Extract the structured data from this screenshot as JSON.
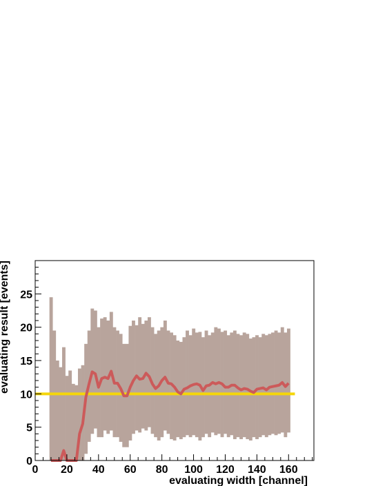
{
  "chart_data": {
    "type": "band_line",
    "x_label": "evaluating width [channel]",
    "y_label": "evaluating result [events]",
    "xlim": [
      0,
      176
    ],
    "ylim": [
      0,
      30
    ],
    "xticks": [
      0,
      20,
      40,
      60,
      80,
      100,
      120,
      140,
      160
    ],
    "yticks": [
      0,
      5,
      10,
      15,
      20,
      25
    ],
    "x": [
      10,
      12,
      14,
      16,
      18,
      20,
      22,
      24,
      26,
      28,
      30,
      32,
      34,
      36,
      38,
      40,
      42,
      44,
      46,
      48,
      50,
      52,
      54,
      56,
      58,
      60,
      62,
      64,
      66,
      68,
      70,
      72,
      74,
      76,
      78,
      80,
      82,
      84,
      86,
      88,
      90,
      92,
      94,
      96,
      98,
      100,
      102,
      104,
      106,
      108,
      110,
      112,
      114,
      116,
      118,
      120,
      122,
      124,
      126,
      128,
      130,
      132,
      134,
      136,
      138,
      140,
      142,
      144,
      146,
      148,
      150,
      152,
      154,
      156,
      158,
      160
    ],
    "band": {
      "color": "#b8a49c",
      "upper": [
        24.5,
        19.5,
        15,
        14,
        17,
        12.7,
        13.5,
        11.5,
        11.3,
        13.8,
        14.3,
        17.5,
        19.5,
        22.8,
        22.5,
        20,
        21.3,
        21.5,
        21,
        22.3,
        20,
        19.5,
        19,
        17.5,
        17.5,
        20.2,
        21,
        20.3,
        21.5,
        20.5,
        21,
        21.5,
        20,
        19,
        19.5,
        20,
        21,
        19.5,
        19.2,
        18.8,
        18,
        17.8,
        18.5,
        19.5,
        18.8,
        19.8,
        19.2,
        19.3,
        18.5,
        19.5,
        18.8,
        19.2,
        20,
        19.8,
        19.3,
        19.5,
        18.8,
        19.2,
        19.5,
        19,
        18.8,
        19.2,
        19,
        18.3,
        18.5,
        18.8,
        18.5,
        19,
        18.8,
        19,
        19.2,
        19.5,
        19.2,
        20,
        19.2,
        19.8
      ],
      "lower": [
        0,
        0,
        0,
        0,
        0,
        0,
        0,
        0,
        0,
        0,
        0,
        1,
        2.8,
        4,
        4.8,
        3.5,
        3.5,
        4.5,
        4,
        4.5,
        3.5,
        3.5,
        2.8,
        2,
        2,
        3,
        4,
        4.5,
        4.2,
        4.8,
        4.5,
        5,
        4,
        3.5,
        3,
        3.5,
        4.5,
        4,
        3.2,
        3,
        3.5,
        3.2,
        3.5,
        3.8,
        3.5,
        3.8,
        3.5,
        3,
        3.5,
        4,
        3.5,
        4.2,
        3.8,
        4,
        3.5,
        4,
        3.5,
        3.8,
        3.2,
        3.5,
        3.2,
        3.5,
        3.2,
        3,
        3.5,
        3.2,
        3.5,
        3.8,
        3.5,
        3.8,
        4,
        3.8,
        4,
        4.2,
        3.5,
        4.2
      ]
    },
    "line": {
      "color": "#cc5a5a",
      "values": [
        0,
        0,
        0,
        0,
        1.5,
        0,
        0,
        0,
        0,
        4,
        5.5,
        9.5,
        11.5,
        13.3,
        13,
        11,
        12.3,
        12.5,
        12.3,
        13.4,
        11.6,
        11.6,
        10.8,
        9.7,
        9.7,
        11,
        12,
        12.7,
        12.2,
        12.3,
        13.1,
        12.6,
        11.5,
        10.8,
        11.2,
        12,
        12.5,
        11.6,
        11.5,
        11,
        10.3,
        10,
        10.7,
        10.9,
        11.2,
        11.4,
        11.5,
        11.3,
        10.5,
        11.2,
        11.3,
        11.7,
        11.5,
        11.7,
        11.5,
        11,
        11,
        11.3,
        11.3,
        10.9,
        10.6,
        10.8,
        10.7,
        10.4,
        10.2,
        10.7,
        10.8,
        10.9,
        10.6,
        11,
        11.1,
        11.2,
        11.3,
        11.7,
        11.1,
        11.6
      ]
    },
    "reference": {
      "color": "#f5d60a",
      "y": 10,
      "x": [
        0,
        164
      ]
    }
  }
}
